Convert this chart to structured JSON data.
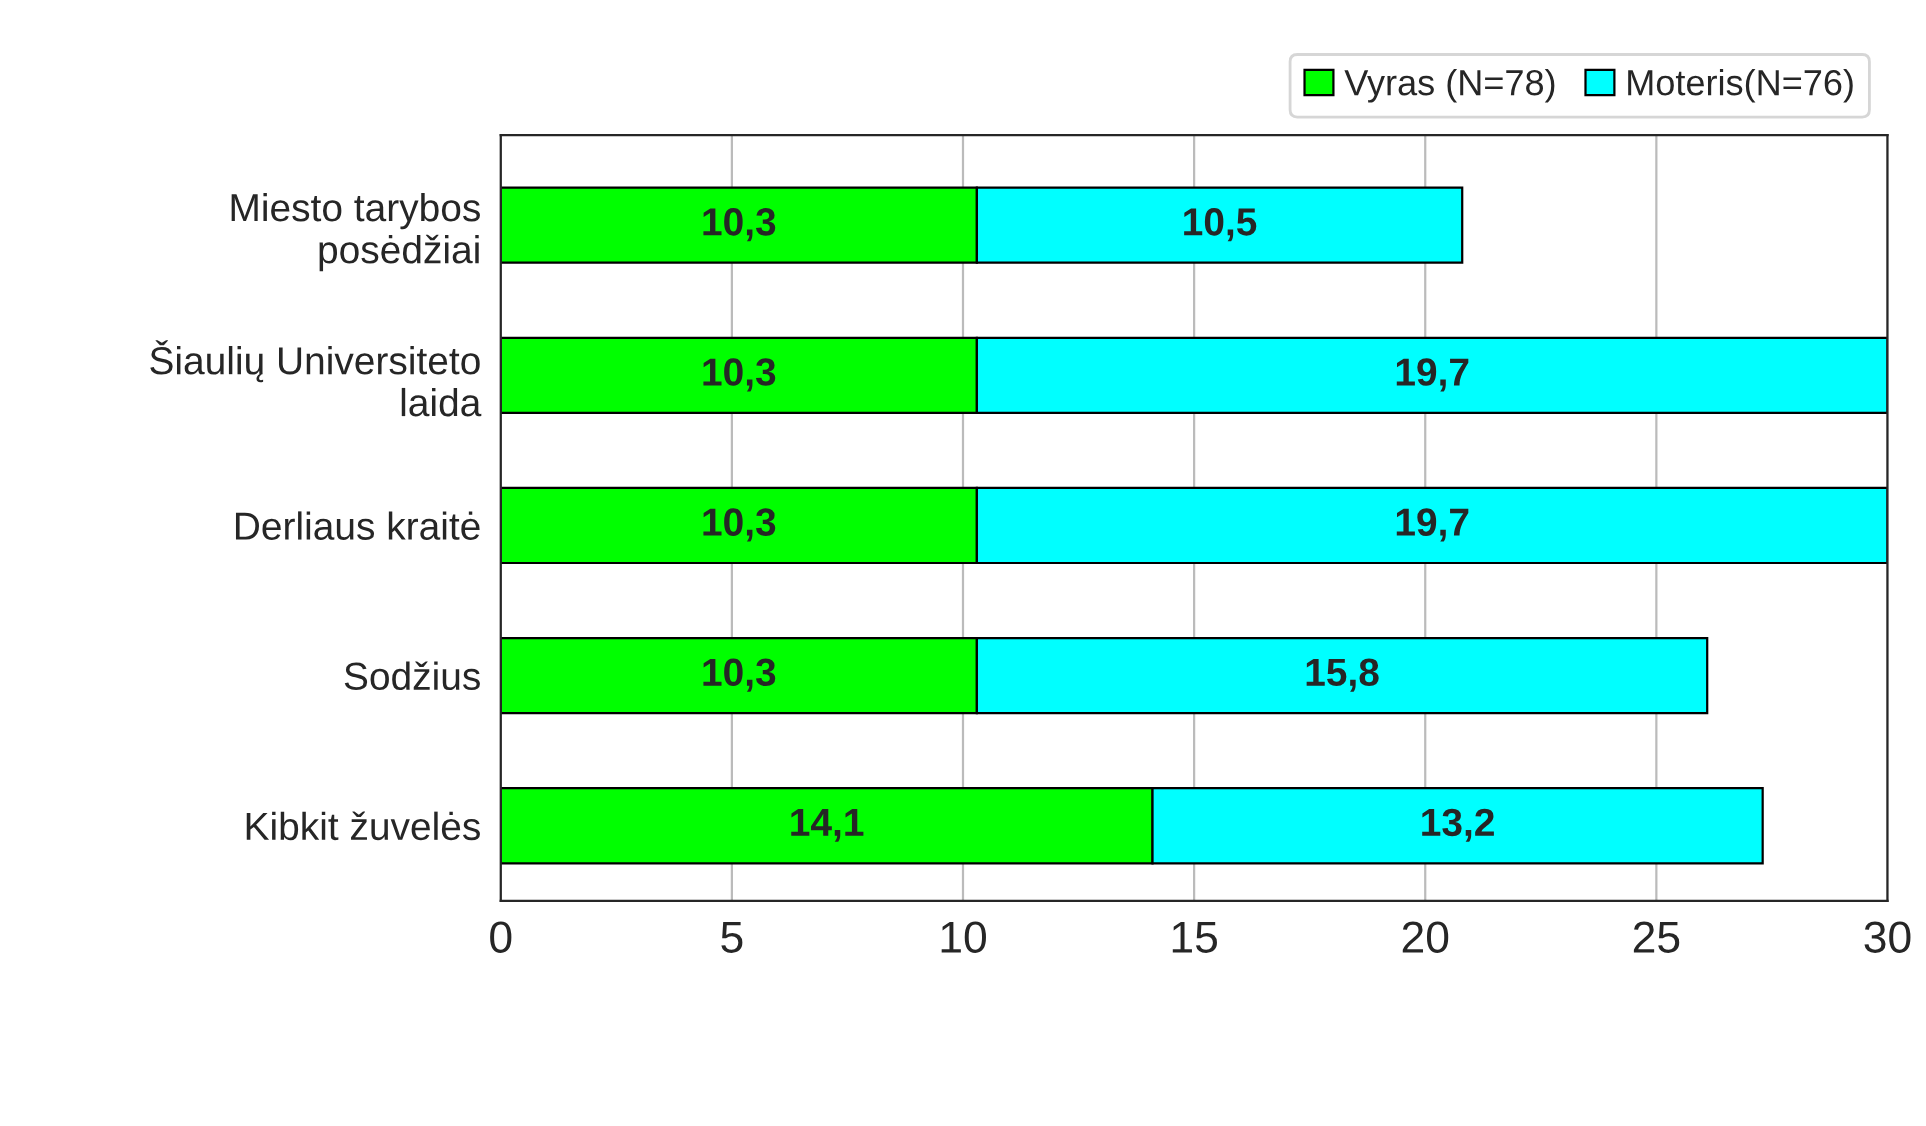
{
  "chart_data": {
    "type": "bar",
    "orientation": "horizontal",
    "stacked": true,
    "categories": [
      "Miesto tarybos\nposėdžiai",
      "Šiaulių Universiteto\nlaida",
      "Derliaus kraitė",
      "Sodžius",
      "Kibkit žuvelės"
    ],
    "series": [
      {
        "name": "Vyras (N=78)",
        "color": "#00ff00",
        "values": [
          10.3,
          10.3,
          10.3,
          10.3,
          14.1
        ],
        "value_labels": [
          "10,3",
          "10,3",
          "10,3",
          "10,3",
          "14,1"
        ]
      },
      {
        "name": "Moteris(N=76)",
        "color": "#00ffff",
        "values": [
          10.5,
          19.7,
          19.7,
          15.8,
          13.2
        ],
        "value_labels": [
          "10,5",
          "19,7",
          "19,7",
          "15,8",
          "13,2"
        ]
      }
    ],
    "xlim": [
      0,
      30
    ],
    "xticks": [
      0,
      5,
      10,
      15,
      20,
      25,
      30
    ],
    "grid": "x",
    "legend": "top right"
  }
}
